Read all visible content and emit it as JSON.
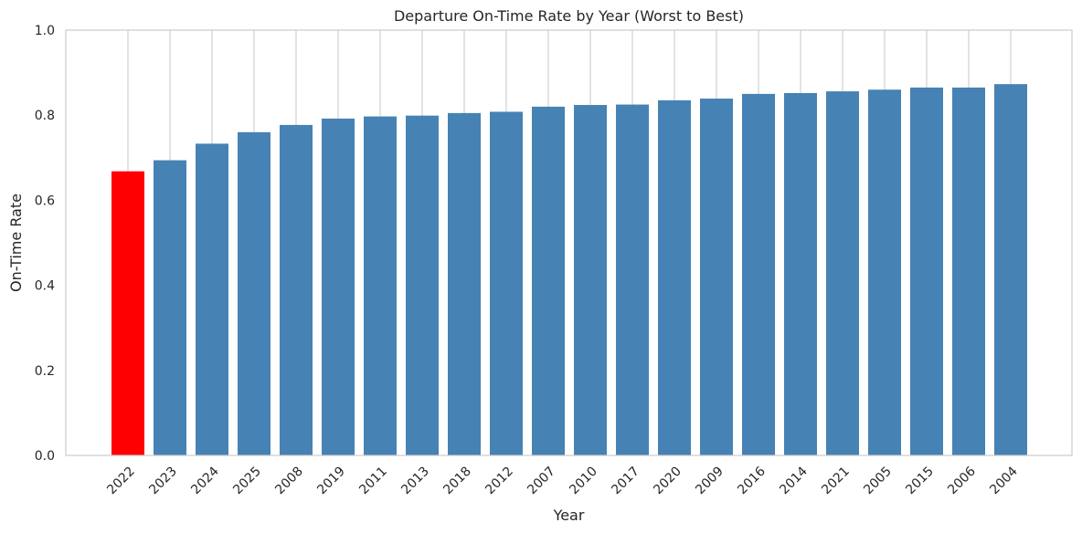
{
  "chart_data": {
    "type": "bar",
    "title": "Departure On-Time Rate by Year (Worst to Best)",
    "xlabel": "Year",
    "ylabel": "On-Time Rate",
    "categories": [
      "2022",
      "2023",
      "2024",
      "2025",
      "2008",
      "2019",
      "2011",
      "2013",
      "2018",
      "2012",
      "2007",
      "2010",
      "2017",
      "2020",
      "2009",
      "2016",
      "2014",
      "2021",
      "2005",
      "2015",
      "2006",
      "2004"
    ],
    "values": [
      0.668,
      0.694,
      0.733,
      0.76,
      0.777,
      0.792,
      0.797,
      0.799,
      0.805,
      0.808,
      0.82,
      0.824,
      0.825,
      0.835,
      0.839,
      0.85,
      0.852,
      0.856,
      0.86,
      0.865,
      0.865,
      0.873
    ],
    "ylim": [
      0,
      1.0
    ],
    "yticks": [
      "0.0",
      "0.2",
      "0.4",
      "0.6",
      "0.8",
      "1.0"
    ],
    "bar_color": "#4682b4",
    "highlight_color": "#ff0000",
    "highlight_category": "2022",
    "grid": "vertical"
  }
}
